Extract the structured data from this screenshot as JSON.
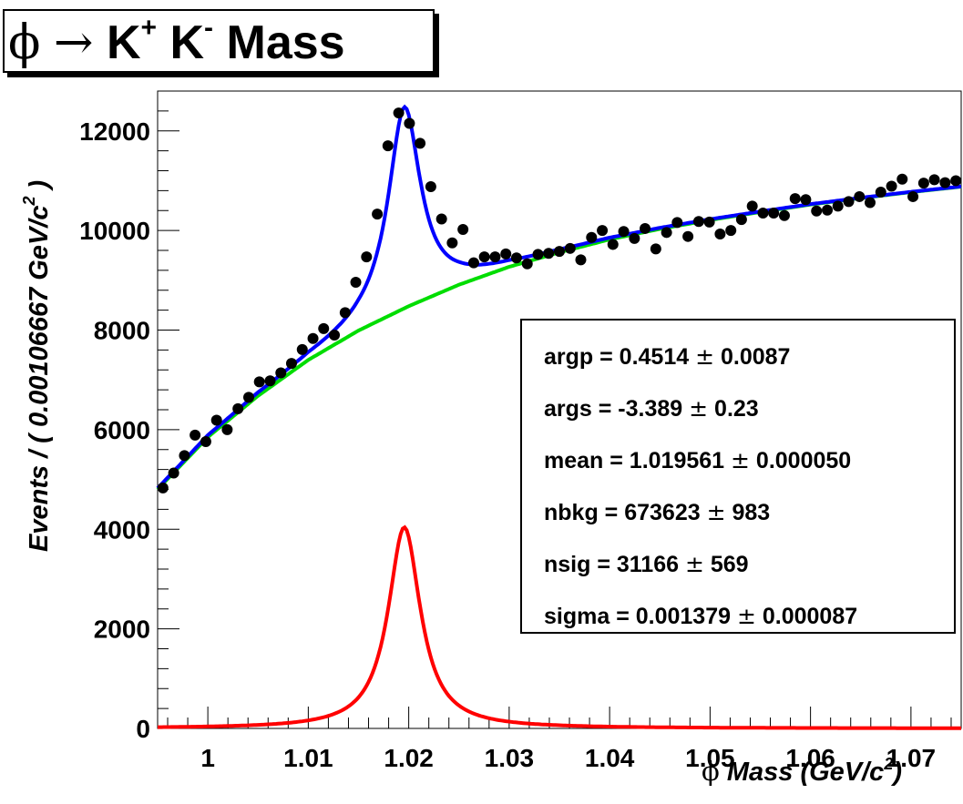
{
  "title": {
    "phi": "ϕ",
    "arrow": "→",
    "k_plus": "K",
    "plus": "+",
    "k_minus": "K",
    "minus": "-",
    "rest": "Mass"
  },
  "x_title": {
    "phi": "ϕ",
    "label": "Mass (GeV/c",
    "exp": "2",
    "close": ")"
  },
  "y_title": "Events / ( 0.00106667 GeV/c  )",
  "y_title_exp": "2",
  "stats": [
    {
      "label": "argp =  0.4514 ",
      "pm": "±",
      "err": " 0.0087"
    },
    {
      "label": "args = -3.389 ",
      "pm": "±",
      "err": " 0.23"
    },
    {
      "label": "mean =  1.019561 ",
      "pm": "±",
      "err": " 0.000050"
    },
    {
      "label": "nbkg =  673623 ",
      "pm": "±",
      "err": " 983"
    },
    {
      "label": "nsig =  31166 ",
      "pm": "±",
      "err": " 569"
    },
    {
      "label": "sigma =  0.001379 ",
      "pm": "±",
      "err": " 0.000087"
    }
  ],
  "colors": {
    "data": "#000000",
    "total_fit": "#0000ff",
    "background": "#00dd00",
    "signal": "#ff0000"
  },
  "chart_data": {
    "type": "scatter",
    "xlim": [
      0.995,
      1.075
    ],
    "ylim": [
      0,
      12800
    ],
    "x_ticks": [
      1,
      1.01,
      1.02,
      1.03,
      1.04,
      1.05,
      1.06,
      1.07
    ],
    "x_tick_labels": [
      "1",
      "1.01",
      "1.02",
      "1.03",
      "1.04",
      "1.05",
      "1.06",
      "1.07"
    ],
    "y_ticks": [
      0,
      2000,
      4000,
      6000,
      8000,
      10000,
      12000
    ],
    "y_tick_labels": [
      "0",
      "2000",
      "4000",
      "6000",
      "8000",
      "10000",
      "12000"
    ],
    "data_points": {
      "x": [
        0.99553,
        0.9966,
        0.99767,
        0.99873,
        0.9998,
        1.00087,
        1.00193,
        1.003,
        1.00407,
        1.00513,
        1.0062,
        1.00727,
        1.00833,
        1.0094,
        1.01047,
        1.01153,
        1.0126,
        1.01367,
        1.01473,
        1.0158,
        1.01687,
        1.01793,
        1.019,
        1.02007,
        1.02113,
        1.0222,
        1.02327,
        1.02433,
        1.0254,
        1.02647,
        1.02753,
        1.0286,
        1.02967,
        1.03073,
        1.0318,
        1.03287,
        1.03393,
        1.035,
        1.03607,
        1.03713,
        1.0382,
        1.03927,
        1.04033,
        1.0414,
        1.04247,
        1.04353,
        1.0446,
        1.04567,
        1.04673,
        1.0478,
        1.04887,
        1.04993,
        1.051,
        1.05207,
        1.05313,
        1.0542,
        1.05527,
        1.05633,
        1.0574,
        1.05847,
        1.05953,
        1.0606,
        1.06167,
        1.06273,
        1.0638,
        1.06487,
        1.06593,
        1.067,
        1.06807,
        1.06913,
        1.0702,
        1.07127,
        1.07233,
        1.0734,
        1.07447
      ],
      "y": [
        4830,
        5130,
        5480,
        5890,
        5760,
        6190,
        6000,
        6420,
        6650,
        6960,
        6980,
        7140,
        7330,
        7610,
        7830,
        8030,
        7900,
        8350,
        8960,
        9470,
        10330,
        11700,
        12360,
        12150,
        11750,
        10880,
        10230,
        9750,
        10020,
        9350,
        9470,
        9470,
        9530,
        9450,
        9330,
        9520,
        9540,
        9580,
        9640,
        9410,
        9860,
        10000,
        9720,
        9980,
        9840,
        10040,
        9630,
        9960,
        10160,
        9880,
        10180,
        10170,
        9930,
        10000,
        10220,
        10490,
        10350,
        10350,
        10300,
        10640,
        10620,
        10390,
        10410,
        10490,
        10580,
        10680,
        10560,
        10770,
        10890,
        11030,
        10680,
        10950,
        11020,
        10960,
        11000
      ]
    },
    "series": [
      {
        "name": "total_fit",
        "color": "#0000ff"
      },
      {
        "name": "background",
        "color": "#00dd00"
      },
      {
        "name": "signal",
        "color": "#ff0000"
      }
    ],
    "model": {
      "mean": 1.019561,
      "sigma": 0.001379,
      "signal_peak": 4040,
      "background_points": {
        "x": [
          0.995,
          1.0,
          1.005,
          1.01,
          1.015,
          1.02,
          1.025,
          1.03,
          1.035,
          1.04,
          1.045,
          1.05,
          1.055,
          1.06,
          1.065,
          1.07,
          1.075
        ],
        "y": [
          4800,
          5850,
          6680,
          7400,
          7990,
          8480,
          8910,
          9270,
          9560,
          9820,
          10030,
          10210,
          10370,
          10520,
          10650,
          10770,
          10880
        ]
      }
    }
  }
}
